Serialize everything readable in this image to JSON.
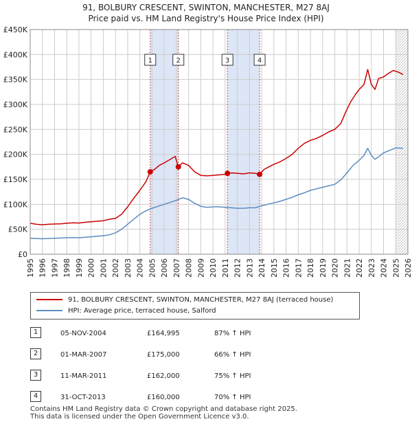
{
  "title_line1": "91, BOLBURY CRESCENT, SWINTON, MANCHESTER, M27 8AJ",
  "title_line2": "Price paid vs. HM Land Registry's House Price Index (HPI)",
  "colors": {
    "red": "#cc0000",
    "blue": "#5b8cc1",
    "shade": "#dde6f6",
    "grid": "#cccccc",
    "vline": "#d04040"
  },
  "chart_data": {
    "type": "line",
    "xlabel": "",
    "ylabel": "",
    "xlim": [
      1995,
      2026
    ],
    "ylim": [
      0,
      450000
    ],
    "y_ticks": [
      0,
      50000,
      100000,
      150000,
      200000,
      250000,
      300000,
      350000,
      400000,
      450000
    ],
    "y_tick_labels": [
      "£0",
      "£50K",
      "£100K",
      "£150K",
      "£200K",
      "£250K",
      "£300K",
      "£350K",
      "£400K",
      "£450K"
    ],
    "x_ticks": [
      1995,
      1996,
      1997,
      1998,
      1999,
      2000,
      2001,
      2002,
      2003,
      2004,
      2005,
      2006,
      2007,
      2008,
      2009,
      2010,
      2011,
      2012,
      2013,
      2014,
      2015,
      2016,
      2017,
      2018,
      2019,
      2020,
      2021,
      2022,
      2023,
      2024,
      2025,
      2026
    ],
    "shaded_ranges": [
      [
        2004.85,
        2007.16
      ],
      [
        2011.19,
        2013.83
      ]
    ],
    "hatch_from": 2025.0,
    "series": [
      {
        "name": "91, BOLBURY CRESCENT, SWINTON, MANCHESTER, M27 8AJ (terraced house)",
        "color": "#cc0000",
        "x": [
          1995.0,
          1995.5,
          1996.0,
          1996.5,
          1997.0,
          1997.5,
          1998.0,
          1998.5,
          1999.0,
          1999.5,
          2000.0,
          2000.5,
          2001.0,
          2001.5,
          2002.0,
          2002.5,
          2003.0,
          2003.5,
          2004.0,
          2004.5,
          2004.85,
          2005.2,
          2005.6,
          2006.0,
          2006.5,
          2006.9,
          2007.16,
          2007.5,
          2008.0,
          2008.5,
          2009.0,
          2009.5,
          2010.0,
          2010.5,
          2011.0,
          2011.19,
          2011.6,
          2012.0,
          2012.5,
          2013.0,
          2013.5,
          2013.83,
          2014.2,
          2014.6,
          2015.0,
          2015.5,
          2016.0,
          2016.5,
          2017.0,
          2017.5,
          2018.0,
          2018.5,
          2019.0,
          2019.5,
          2020.0,
          2020.5,
          2020.9,
          2021.3,
          2021.7,
          2022.0,
          2022.4,
          2022.7,
          2023.0,
          2023.3,
          2023.6,
          2024.0,
          2024.4,
          2024.8,
          2025.2,
          2025.6
        ],
        "y": [
          62000,
          60000,
          59000,
          60000,
          60500,
          61000,
          62000,
          63000,
          62500,
          64000,
          65000,
          66000,
          67000,
          70000,
          72000,
          80000,
          95000,
          112000,
          128000,
          145000,
          164995,
          170000,
          178000,
          183000,
          190000,
          196000,
          175000,
          183000,
          178000,
          165000,
          158000,
          157000,
          158000,
          159000,
          160000,
          162000,
          163000,
          162000,
          161000,
          163000,
          162000,
          160000,
          170000,
          175000,
          180000,
          185000,
          192000,
          200000,
          212000,
          222000,
          228000,
          232000,
          238000,
          245000,
          250000,
          262000,
          285000,
          305000,
          320000,
          330000,
          340000,
          370000,
          340000,
          330000,
          352000,
          355000,
          362000,
          368000,
          365000,
          360000
        ]
      },
      {
        "name": "HPI: Average price, terraced house, Salford",
        "color": "#5b8cc1",
        "x": [
          1995.0,
          1995.5,
          1996.0,
          1996.5,
          1997.0,
          1997.5,
          1998.0,
          1998.5,
          1999.0,
          1999.5,
          2000.0,
          2000.5,
          2001.0,
          2001.5,
          2002.0,
          2002.5,
          2003.0,
          2003.5,
          2004.0,
          2004.5,
          2005.0,
          2005.5,
          2006.0,
          2006.5,
          2007.0,
          2007.5,
          2008.0,
          2008.5,
          2009.0,
          2009.5,
          2010.0,
          2010.5,
          2011.0,
          2011.5,
          2012.0,
          2012.5,
          2013.0,
          2013.5,
          2014.0,
          2014.5,
          2015.0,
          2015.5,
          2016.0,
          2016.5,
          2017.0,
          2017.5,
          2018.0,
          2018.5,
          2019.0,
          2019.5,
          2020.0,
          2020.5,
          2021.0,
          2021.5,
          2022.0,
          2022.4,
          2022.7,
          2023.0,
          2023.3,
          2023.7,
          2024.0,
          2024.5,
          2025.0,
          2025.6
        ],
        "y": [
          32000,
          31500,
          31000,
          31500,
          32000,
          32500,
          33000,
          33500,
          33000,
          34000,
          35000,
          36000,
          37000,
          39000,
          43000,
          50000,
          60000,
          70000,
          80000,
          87000,
          92000,
          96000,
          100000,
          104000,
          108000,
          113000,
          110000,
          102000,
          96000,
          94000,
          95000,
          95000,
          94000,
          93000,
          92000,
          92000,
          93000,
          93000,
          97000,
          100000,
          103000,
          106000,
          110000,
          114000,
          119000,
          123000,
          128000,
          131000,
          134000,
          137000,
          140000,
          149000,
          163000,
          178000,
          188000,
          198000,
          212000,
          198000,
          190000,
          197000,
          203000,
          208000,
          213000,
          212000
        ]
      }
    ],
    "transactions": [
      {
        "label": "1",
        "x": 2004.85,
        "y": 164995
      },
      {
        "label": "2",
        "x": 2007.16,
        "y": 175000
      },
      {
        "label": "3",
        "x": 2011.19,
        "y": 162000
      },
      {
        "label": "4",
        "x": 2013.83,
        "y": 160000
      }
    ]
  },
  "legend": {
    "red_label": "91, BOLBURY CRESCENT, SWINTON, MANCHESTER, M27 8AJ (terraced house)",
    "blue_label": "HPI: Average price, terraced house, Salford"
  },
  "table": [
    {
      "num": "1",
      "date": "05-NOV-2004",
      "price": "£164,995",
      "hpi": "87% ↑ HPI"
    },
    {
      "num": "2",
      "date": "01-MAR-2007",
      "price": "£175,000",
      "hpi": "66% ↑ HPI"
    },
    {
      "num": "3",
      "date": "11-MAR-2011",
      "price": "£162,000",
      "hpi": "75% ↑ HPI"
    },
    {
      "num": "4",
      "date": "31-OCT-2013",
      "price": "£160,000",
      "hpi": "70% ↑ HPI"
    }
  ],
  "footer": {
    "line1": "Contains HM Land Registry data © Crown copyright and database right 2025.",
    "line2": "This data is licensed under the Open Government Licence v3.0."
  }
}
